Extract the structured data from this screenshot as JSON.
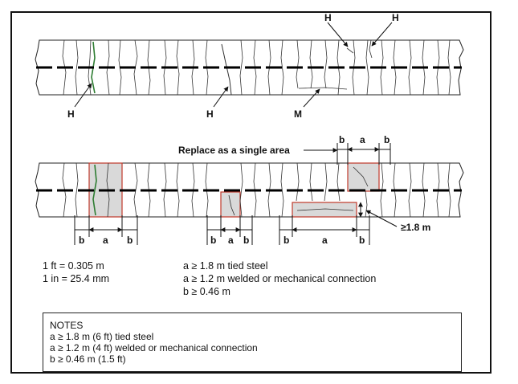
{
  "top_labels": {
    "h_top_1": "H",
    "h_top_2": "H",
    "h_bottom_1": "H",
    "h_bottom_2": "H",
    "m_bottom": "M"
  },
  "replace_label": "Replace as a single area",
  "dim_labels": {
    "top_b1": "b",
    "top_a": "a",
    "top_b2": "b",
    "left_b1": "b",
    "left_a": "a",
    "left_b2": "b",
    "mid_b1": "b",
    "mid_a": "a",
    "mid_b2": "b",
    "right_b1": "b",
    "right_a": "a",
    "right_b2": "b",
    "depth": "≥1.8 m"
  },
  "conversions": [
    "1 ft = 0.305 m",
    "1 in = 25.4 mm"
  ],
  "criteria": [
    "a ≥ 1.8 m tied steel",
    "a ≥ 1.2 m welded or mechanical connection",
    "b ≥ 0.46 m"
  ],
  "notes": {
    "title": "NOTES",
    "lines": [
      "a ≥ 1.8 m (6 ft) tied steel",
      "a ≥ 1.2 m (4 ft) welded or mechanical connection",
      "b ≥ 0.46 m (1.5 ft)"
    ]
  },
  "colors": {
    "repair_fill": "#d9d9d9",
    "repair_border": "#c0392b",
    "crack_highlight": "#2e7d32"
  }
}
